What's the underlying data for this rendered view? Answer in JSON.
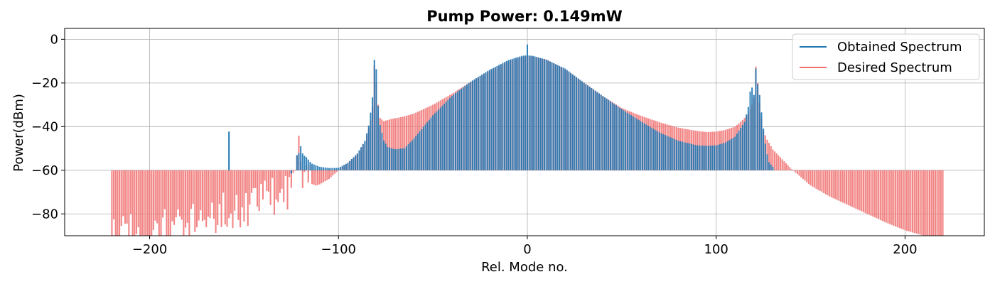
{
  "chart_data": {
    "type": "bar",
    "title": "Pump Power: 0.149mW",
    "xlabel": "Rel. Mode no.",
    "ylabel": "Power(dBm)",
    "xlim": [
      -245,
      242
    ],
    "ylim": [
      -90,
      5
    ],
    "xticks": [
      -200,
      -100,
      0,
      100,
      200
    ],
    "yticks": [
      0,
      -20,
      -40,
      -60,
      -80
    ],
    "xtick_labels": [
      "−200",
      "−100",
      "0",
      "100",
      "200"
    ],
    "ytick_labels": [
      "0",
      "−20",
      "−40",
      "−60",
      "−80"
    ],
    "grid": true,
    "legend_position": "top-right",
    "baseline": -60,
    "series": [
      {
        "name": "Obtained Spectrum",
        "color": "#1f77b4",
        "mode_range": [
          -122,
          130
        ],
        "points": [
          [
            -122,
            -53.1
          ],
          [
            -121,
            -52.2
          ],
          [
            -120,
            -49.0
          ],
          [
            -119,
            -52.3
          ],
          [
            -118,
            -53.4
          ],
          [
            -117,
            -54.0
          ],
          [
            -116,
            -55.1
          ],
          [
            -115,
            -56.2
          ],
          [
            -114,
            -57.0
          ],
          [
            -110,
            -58.4
          ],
          [
            -105,
            -59.0
          ],
          [
            -100,
            -58.9
          ],
          [
            -95,
            -56.6
          ],
          [
            -90,
            -52.3
          ],
          [
            -86,
            -46.5
          ],
          [
            -84,
            -39.5
          ],
          [
            -83,
            -33.6
          ],
          [
            -82,
            -26.6
          ],
          [
            -81,
            -9.4
          ],
          [
            -80,
            -13.7
          ],
          [
            -79,
            -30.6
          ],
          [
            -78,
            -39.3
          ],
          [
            -76,
            -46.3
          ],
          [
            -74,
            -49.3
          ],
          [
            -70,
            -50.4
          ],
          [
            -65,
            -49.9
          ],
          [
            -60,
            -45.4
          ],
          [
            -50,
            -34.8
          ],
          [
            -40,
            -26.0
          ],
          [
            -30,
            -19.4
          ],
          [
            -20,
            -14.0
          ],
          [
            -10,
            -9.5
          ],
          [
            -3,
            -7.6
          ],
          [
            -1,
            -7.4
          ],
          [
            0,
            -2.4
          ],
          [
            1,
            -7.4
          ],
          [
            3,
            -7.6
          ],
          [
            10,
            -9.3
          ],
          [
            20,
            -13.4
          ],
          [
            30,
            -19.9
          ],
          [
            40,
            -26.0
          ],
          [
            50,
            -32.0
          ],
          [
            60,
            -37.5
          ],
          [
            70,
            -42.7
          ],
          [
            80,
            -46.5
          ],
          [
            90,
            -48.6
          ],
          [
            95,
            -48.8
          ],
          [
            100,
            -48.6
          ],
          [
            105,
            -47.3
          ],
          [
            110,
            -44.6
          ],
          [
            115,
            -37.9
          ],
          [
            117,
            -31.0
          ],
          [
            118,
            -23.9
          ],
          [
            119,
            -22.1
          ],
          [
            120,
            -25.5
          ],
          [
            121,
            -13.4
          ],
          [
            122,
            -20.6
          ],
          [
            123,
            -25.5
          ],
          [
            124,
            -33.5
          ],
          [
            125,
            -40.9
          ],
          [
            126,
            -47.8
          ],
          [
            127,
            -52.7
          ],
          [
            128,
            -56.3
          ],
          [
            129,
            -57.4
          ],
          [
            130,
            -58.4
          ]
        ],
        "spikes": [
          [
            -158,
            -42.3
          ],
          [
            -125,
            -61.5
          ]
        ]
      },
      {
        "name": "Desired Spectrum",
        "color": "#f07070",
        "mode_range": [
          -220,
          220
        ],
        "points": [
          [
            -220,
            -91
          ],
          [
            -200,
            -89
          ],
          [
            -180,
            -85
          ],
          [
            -160,
            -80
          ],
          [
            -150,
            -77
          ],
          [
            -140,
            -74
          ],
          [
            -130,
            -70
          ],
          [
            -125,
            -69
          ],
          [
            -121,
            -45
          ],
          [
            -120,
            -54
          ],
          [
            -118,
            -63
          ],
          [
            -115,
            -66
          ],
          [
            -112,
            -67
          ],
          [
            -110,
            -66.5
          ],
          [
            -105,
            -64
          ],
          [
            -100,
            -60
          ],
          [
            -95,
            -56.5
          ],
          [
            -90,
            -52.5
          ],
          [
            -86,
            -47
          ],
          [
            -84,
            -41
          ],
          [
            -83,
            -37
          ],
          [
            -82,
            -31
          ],
          [
            -81,
            -12
          ],
          [
            -80,
            -20
          ],
          [
            -79,
            -30
          ],
          [
            -78,
            -36
          ],
          [
            -76,
            -37.5
          ],
          [
            -72,
            -36.5
          ],
          [
            -66,
            -35.5
          ],
          [
            -60,
            -34
          ],
          [
            -50,
            -30
          ],
          [
            -40,
            -25
          ],
          [
            -30,
            -19.5
          ],
          [
            -20,
            -14.5
          ],
          [
            -10,
            -10
          ],
          [
            0,
            -7.5
          ],
          [
            10,
            -9.2
          ],
          [
            20,
            -13.8
          ],
          [
            30,
            -19.8
          ],
          [
            40,
            -26
          ],
          [
            50,
            -31.5
          ],
          [
            60,
            -35
          ],
          [
            70,
            -38
          ],
          [
            80,
            -40.5
          ],
          [
            90,
            -42
          ],
          [
            95,
            -42.5
          ],
          [
            100,
            -42.3
          ],
          [
            105,
            -41.5
          ],
          [
            110,
            -40
          ],
          [
            114,
            -37
          ],
          [
            117,
            -34
          ],
          [
            119,
            -30
          ],
          [
            120,
            -27
          ],
          [
            121,
            -12.5
          ],
          [
            122,
            -20
          ],
          [
            123,
            -29
          ],
          [
            124,
            -36
          ],
          [
            125,
            -42
          ],
          [
            127,
            -46
          ],
          [
            130,
            -50.5
          ],
          [
            135,
            -55
          ],
          [
            140,
            -59.5
          ],
          [
            142,
            -61
          ],
          [
            150,
            -67
          ],
          [
            160,
            -72
          ],
          [
            170,
            -76
          ],
          [
            180,
            -80
          ],
          [
            190,
            -84
          ],
          [
            200,
            -87.5
          ],
          [
            210,
            -90
          ],
          [
            220,
            -91
          ]
        ],
        "scatter_range": [
          -220,
          -115
        ]
      }
    ]
  }
}
